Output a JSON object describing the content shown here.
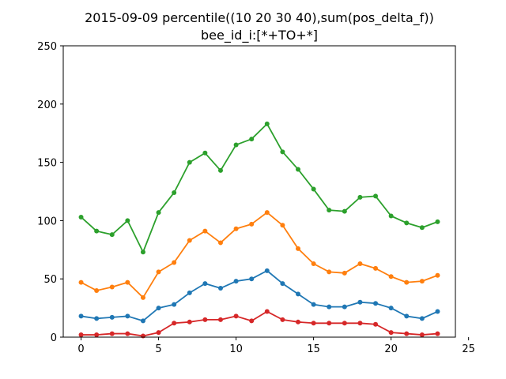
{
  "chart_data": {
    "type": "line",
    "title": "2015-09-09 percentile((10 20 30 40),sum(pos_delta_f))",
    "subtitle": "bee_id_i:[*+TO+*]",
    "xlabel": "",
    "ylabel": "",
    "xlim": [
      -1.15,
      24.15
    ],
    "ylim": [
      0,
      250
    ],
    "xticks": [
      0,
      5,
      10,
      15,
      20,
      25
    ],
    "yticks": [
      0,
      50,
      100,
      150,
      200,
      250
    ],
    "grid": false,
    "legend": "none",
    "x": [
      0,
      1,
      2,
      3,
      4,
      5,
      6,
      7,
      8,
      9,
      10,
      11,
      12,
      13,
      14,
      15,
      16,
      17,
      18,
      19,
      20,
      21,
      22,
      23
    ],
    "series": [
      {
        "color": "#2ca02c",
        "values": [
          103,
          91,
          88,
          100,
          73,
          107,
          124,
          150,
          158,
          143,
          165,
          170,
          183,
          159,
          144,
          127,
          109,
          108,
          120,
          121,
          104,
          98,
          94,
          99
        ]
      },
      {
        "color": "#ff7f0e",
        "values": [
          47,
          40,
          43,
          47,
          34,
          56,
          64,
          83,
          91,
          81,
          93,
          97,
          107,
          96,
          76,
          63,
          56,
          55,
          63,
          59,
          52,
          47,
          48,
          53
        ]
      },
      {
        "color": "#1f77b4",
        "values": [
          18,
          16,
          17,
          18,
          14,
          25,
          28,
          38,
          46,
          42,
          48,
          50,
          57,
          46,
          37,
          28,
          26,
          26,
          30,
          29,
          25,
          18,
          16,
          22
        ]
      },
      {
        "color": "#d62728",
        "values": [
          2,
          2,
          3,
          3,
          1,
          4,
          12,
          13,
          15,
          15,
          18,
          14,
          22,
          15,
          13,
          12,
          12,
          12,
          12,
          11,
          4,
          3,
          2,
          3
        ]
      }
    ]
  }
}
